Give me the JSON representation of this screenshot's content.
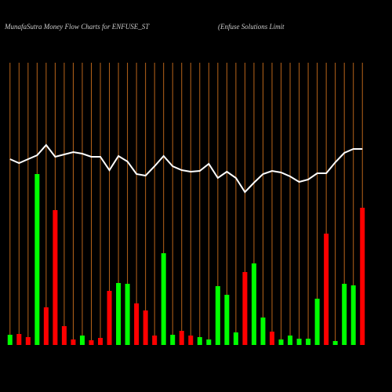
{
  "chart_data": {
    "type": "bar",
    "title": "MunafaSutra  Money Flow  Charts for ENFUSE_ST",
    "subtitle": "(Enfuse   Solutions Limit",
    "values": [
      13,
      14,
      10,
      218,
      48,
      172,
      24,
      7,
      12,
      6,
      9,
      69,
      79,
      78,
      53,
      44,
      12,
      117,
      13,
      18,
      12,
      10,
      7,
      75,
      64,
      16,
      93,
      104,
      35,
      17,
      7,
      12,
      8,
      8,
      59,
      142,
      5,
      78,
      76,
      175
    ],
    "colors": [
      "#00ff00",
      "#ff0000",
      "#ff0000",
      "#00ff00",
      "#ff0000",
      "#ff0000",
      "#ff0000",
      "#ff0000",
      "#00ff00",
      "#ff0000",
      "#ff0000",
      "#ff0000",
      "#00ff00",
      "#00ff00",
      "#ff0000",
      "#ff0000",
      "#ff0000",
      "#00ff00",
      "#00ff00",
      "#ff0000",
      "#ff0000",
      "#00ff00",
      "#00ff00",
      "#00ff00",
      "#00ff00",
      "#00ff00",
      "#ff0000",
      "#00ff00",
      "#00ff00",
      "#ff0000",
      "#00ff00",
      "#00ff00",
      "#00ff00",
      "#00ff00",
      "#00ff00",
      "#ff0000",
      "#00ff00",
      "#00ff00",
      "#00ff00",
      "#ff0000"
    ],
    "line_values": [
      237,
      232,
      237,
      242,
      255,
      240,
      243,
      246,
      244,
      240,
      240,
      223,
      241,
      234,
      218,
      216,
      228,
      241,
      228,
      223,
      221,
      222,
      231,
      213,
      221,
      213,
      195,
      207,
      218,
      222,
      220,
      215,
      208,
      211,
      219,
      219,
      233,
      245,
      250,
      250
    ],
    "line_color": "#ffffff",
    "ylim": [
      0,
      360
    ],
    "grid_color": "#b8641a"
  }
}
